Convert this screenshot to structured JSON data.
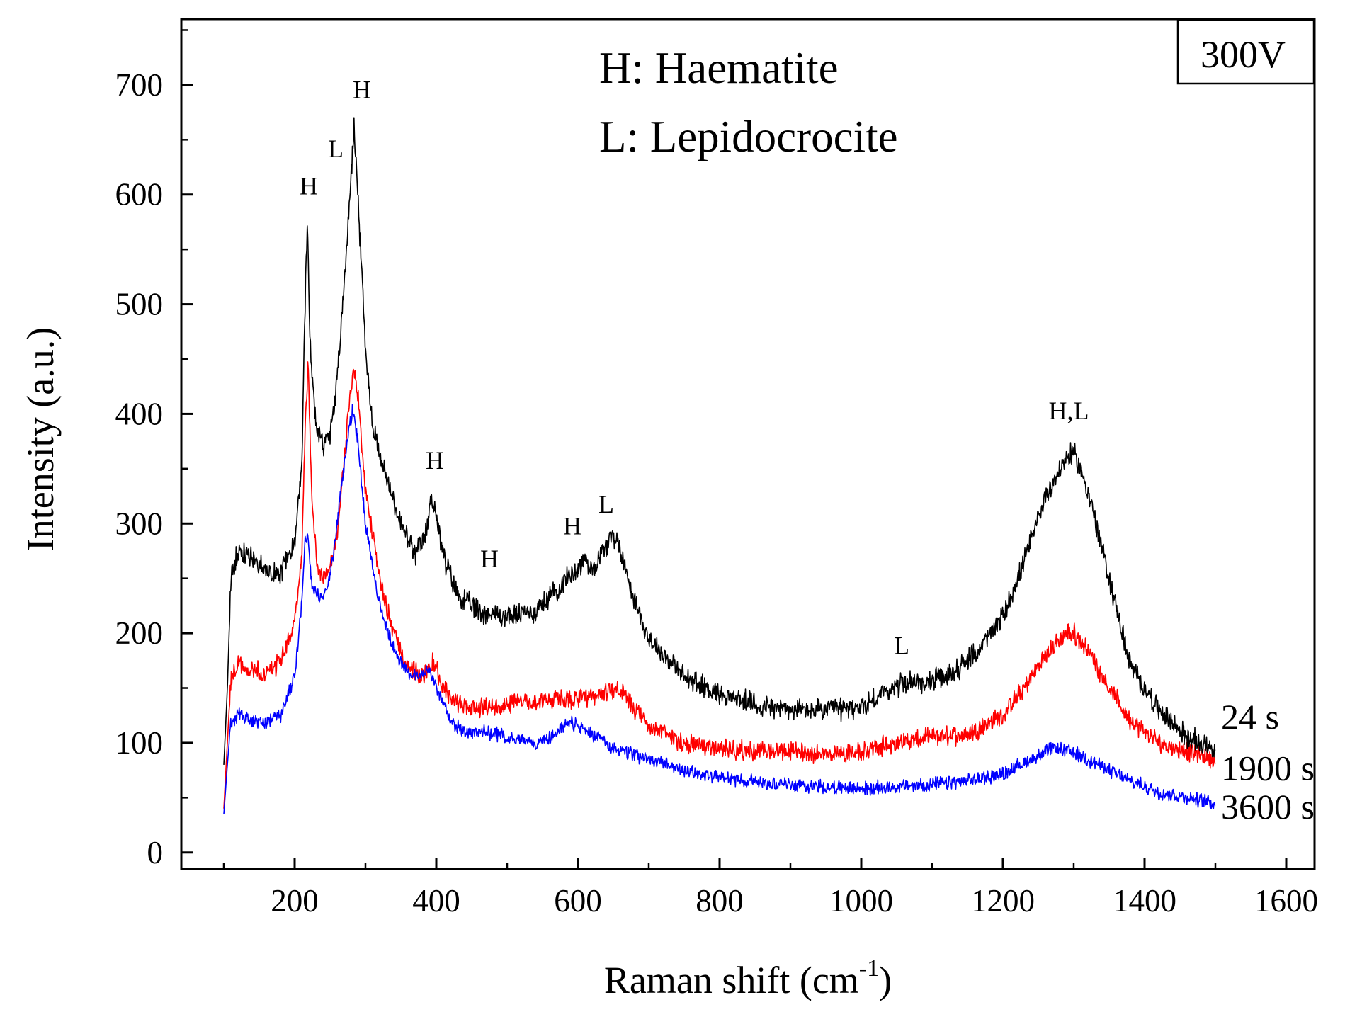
{
  "chart_data": {
    "type": "line",
    "xlabel": "Raman shift (cm",
    "xlabel_superscript": "-1",
    "xlabel_close": ")",
    "ylabel": "Intensity (a.u.)",
    "xlim": [
      40,
      1640
    ],
    "ylim": [
      -15,
      760
    ],
    "xticks": [
      200,
      400,
      600,
      800,
      1000,
      1200,
      1400,
      1600
    ],
    "yticks": [
      0,
      100,
      200,
      300,
      400,
      500,
      600,
      700
    ],
    "grid": false,
    "legend_lines": [
      "H: Haematite",
      "L: Lepidocrocite"
    ],
    "voltage_label": "300V",
    "series": [
      {
        "name": "24 s",
        "color": "#000000",
        "noise": 8,
        "x": [
          100,
          105,
          110,
          120,
          140,
          160,
          180,
          200,
          210,
          215,
          218,
          222,
          230,
          240,
          250,
          260,
          270,
          280,
          284,
          290,
          300,
          310,
          330,
          350,
          370,
          385,
          393,
          398,
          410,
          430,
          460,
          500,
          540,
          570,
          600,
          610,
          620,
          635,
          650,
          660,
          680,
          700,
          750,
          800,
          850,
          900,
          950,
          1000,
          1030,
          1060,
          1090,
          1120,
          1160,
          1200,
          1230,
          1260,
          1290,
          1300,
          1320,
          1350,
          1380,
          1420,
          1460,
          1500
        ],
        "values": [
          80,
          150,
          250,
          275,
          270,
          255,
          255,
          285,
          350,
          510,
          570,
          460,
          390,
          370,
          380,
          430,
          520,
          620,
          665,
          590,
          460,
          390,
          340,
          300,
          270,
          290,
          325,
          315,
          270,
          235,
          220,
          215,
          220,
          240,
          260,
          268,
          258,
          275,
          290,
          275,
          230,
          195,
          160,
          145,
          135,
          130,
          130,
          132,
          145,
          155,
          155,
          160,
          180,
          215,
          265,
          325,
          360,
          365,
          330,
          250,
          170,
          130,
          105,
          95
        ]
      },
      {
        "name": "1900 s",
        "color": "#ff0000",
        "noise": 7,
        "x": [
          100,
          105,
          110,
          120,
          140,
          160,
          180,
          200,
          210,
          215,
          219,
          224,
          232,
          240,
          250,
          260,
          270,
          280,
          284,
          290,
          300,
          320,
          340,
          360,
          380,
          395,
          410,
          430,
          460,
          500,
          540,
          580,
          620,
          650,
          660,
          680,
          700,
          750,
          800,
          850,
          900,
          950,
          1000,
          1050,
          1100,
          1150,
          1200,
          1230,
          1260,
          1290,
          1300,
          1320,
          1350,
          1380,
          1420,
          1460,
          1500
        ],
        "values": [
          40,
          100,
          160,
          170,
          168,
          160,
          175,
          210,
          270,
          390,
          445,
          330,
          255,
          250,
          260,
          290,
          360,
          430,
          440,
          410,
          330,
          250,
          200,
          170,
          160,
          175,
          150,
          135,
          132,
          135,
          138,
          140,
          140,
          150,
          148,
          130,
          115,
          100,
          95,
          92,
          92,
          90,
          92,
          100,
          105,
          108,
          125,
          150,
          180,
          200,
          200,
          185,
          150,
          120,
          100,
          92,
          85
        ]
      },
      {
        "name": "3600 s",
        "color": "#0000ff",
        "noise": 5,
        "x": [
          100,
          105,
          110,
          120,
          140,
          160,
          180,
          200,
          210,
          215,
          219,
          225,
          235,
          245,
          255,
          265,
          275,
          282,
          290,
          300,
          320,
          340,
          360,
          375,
          390,
          400,
          420,
          440,
          470,
          500,
          540,
          560,
          580,
          590,
          620,
          650,
          700,
          750,
          800,
          850,
          900,
          950,
          1000,
          1050,
          1100,
          1150,
          1200,
          1240,
          1270,
          1290,
          1310,
          1330,
          1350,
          1380,
          1420,
          1460,
          1500
        ],
        "values": [
          35,
          80,
          120,
          125,
          120,
          118,
          125,
          160,
          230,
          290,
          285,
          240,
          232,
          240,
          270,
          330,
          380,
          405,
          370,
          300,
          225,
          185,
          165,
          160,
          168,
          150,
          120,
          110,
          110,
          105,
          100,
          105,
          115,
          118,
          108,
          95,
          85,
          75,
          68,
          65,
          62,
          60,
          58,
          60,
          62,
          65,
          72,
          85,
          95,
          93,
          88,
          82,
          75,
          65,
          55,
          50,
          45
        ]
      }
    ],
    "annotations": [
      {
        "text": "H",
        "x": 220,
        "y": 600
      },
      {
        "text": "L",
        "x": 258,
        "y": 634
      },
      {
        "text": "H",
        "x": 295,
        "y": 688
      },
      {
        "text": "H",
        "x": 398,
        "y": 350
      },
      {
        "text": "H",
        "x": 475,
        "y": 260
      },
      {
        "text": "H",
        "x": 592,
        "y": 290
      },
      {
        "text": "L",
        "x": 640,
        "y": 310
      },
      {
        "text": "L",
        "x": 1057,
        "y": 181
      },
      {
        "text": "H,L",
        "x": 1293,
        "y": 395
      }
    ],
    "series_labels": [
      {
        "text": "24 s",
        "x": 1508,
        "y": 113
      },
      {
        "text": "1900 s",
        "x": 1508,
        "y": 66
      },
      {
        "text": "3600 s",
        "x": 1508,
        "y": 31
      }
    ]
  }
}
